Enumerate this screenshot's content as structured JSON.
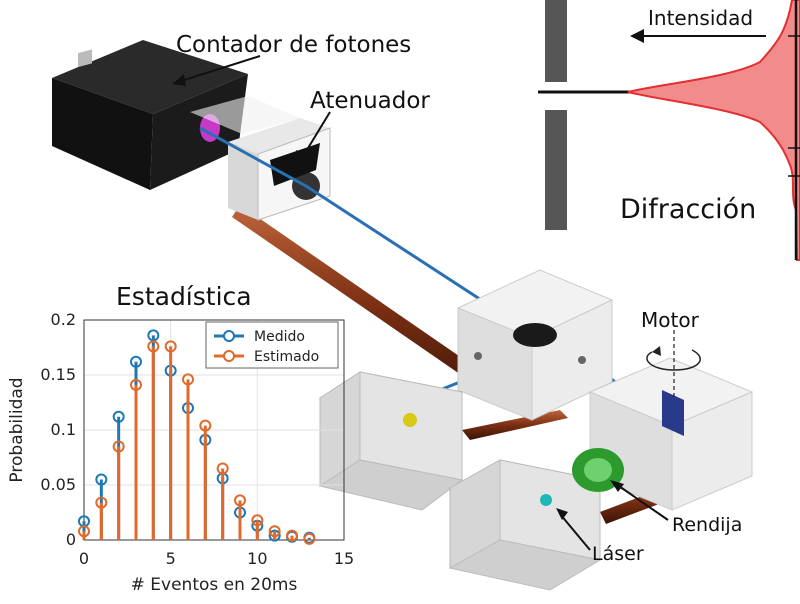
{
  "labels": {
    "photon_counter": "Contador de fotones",
    "attenuator": "Atenuador",
    "intensity": "Intensidad",
    "diffraction": "Difracción",
    "motor": "Motor",
    "slit": "Rendija",
    "laser": "Láser",
    "statistics": "Estadística"
  },
  "colors": {
    "beam": "#2b6fb4",
    "rail": "#7a2e12",
    "intensity_fill": "#f28b8b",
    "intensity_line": "#e23030",
    "measured": "#1f77b4",
    "estimated": "#e06a2c"
  },
  "icons": {
    "rotation_arrow": "rotation-arrow-icon",
    "pointer_arrow": "arrow-icon"
  },
  "chart_data": {
    "type": "stem",
    "title": "Estadística",
    "xlabel": "# Eventos en 20ms",
    "ylabel": "Probabilidad",
    "xlim": [
      0,
      15
    ],
    "ylim": [
      0,
      0.2
    ],
    "xticks": [
      "0",
      "5",
      "10",
      "15"
    ],
    "yticks": [
      "0",
      "0.05",
      "0.1",
      "0.15",
      "0.2"
    ],
    "grid": true,
    "legend_position": "top-right",
    "series": [
      {
        "name": "Medido",
        "x": [
          0,
          1,
          2,
          3,
          4,
          5,
          6,
          7,
          8,
          9,
          10,
          11,
          12,
          13
        ],
        "values": [
          0.017,
          0.055,
          0.112,
          0.162,
          0.186,
          0.154,
          0.12,
          0.091,
          0.056,
          0.025,
          0.013,
          0.004,
          0.003,
          0.002
        ]
      },
      {
        "name": "Estimado",
        "x": [
          0,
          1,
          2,
          3,
          4,
          5,
          6,
          7,
          8,
          9,
          10,
          11,
          12,
          13
        ],
        "values": [
          0.008,
          0.034,
          0.085,
          0.141,
          0.176,
          0.176,
          0.146,
          0.104,
          0.065,
          0.036,
          0.018,
          0.008,
          0.004,
          0.001
        ]
      }
    ]
  }
}
